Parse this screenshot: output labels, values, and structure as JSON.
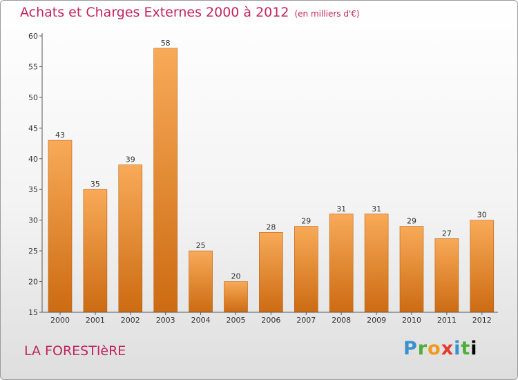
{
  "title": "Achats et Charges Externes 2000 à 2012",
  "subtitle": "(en milliers d'€)",
  "place": "LA FORESTIèRE",
  "logo": [
    "P",
    "r",
    "o",
    "x",
    "i",
    "t",
    "i"
  ],
  "colors": {
    "bar_top": "#f8aa58",
    "bar_bottom": "#cc6b12",
    "title": "#c0245c"
  },
  "chart_data": {
    "type": "bar",
    "categories": [
      "2000",
      "2001",
      "2002",
      "2003",
      "2004",
      "2005",
      "2006",
      "2007",
      "2008",
      "2009",
      "2010",
      "2011",
      "2012"
    ],
    "values": [
      43,
      35,
      39,
      58,
      25,
      20,
      28,
      29,
      31,
      31,
      29,
      27,
      30
    ],
    "ylim": [
      15,
      60
    ],
    "yticks": [
      15,
      20,
      25,
      30,
      35,
      40,
      45,
      50,
      55,
      60
    ],
    "grid": false,
    "data_labels": true
  }
}
